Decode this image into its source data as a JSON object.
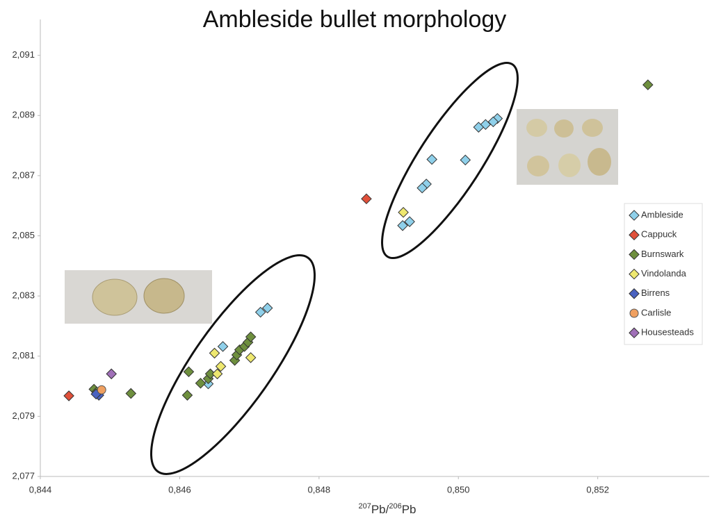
{
  "chart_data": {
    "type": "scatter",
    "title": "Ambleside bullet morphology",
    "xlabel_parts": [
      "207",
      "Pb/",
      "206",
      "Pb"
    ],
    "xlim": [
      0.844,
      0.8536
    ],
    "ylim": [
      2.077,
      2.0915
    ],
    "xticks": [
      {
        "value": 0.844,
        "label": "0,844"
      },
      {
        "value": 0.846,
        "label": "0,846"
      },
      {
        "value": 0.848,
        "label": "0,848"
      },
      {
        "value": 0.85,
        "label": "0,850"
      },
      {
        "value": 0.852,
        "label": "0,852"
      }
    ],
    "yticks": [
      {
        "value": 2.077,
        "label": "2,077"
      },
      {
        "value": 2.079,
        "label": "2,079"
      },
      {
        "value": 2.081,
        "label": "2,081"
      },
      {
        "value": 2.083,
        "label": "2,083"
      },
      {
        "value": 2.085,
        "label": "2,085"
      },
      {
        "value": 2.087,
        "label": "2,087"
      },
      {
        "value": 2.089,
        "label": "2,089"
      },
      {
        "value": 2.091,
        "label": "2,091"
      }
    ],
    "grid": false,
    "legend": "right",
    "series": [
      {
        "name": "Ambleside",
        "color": "#8fd0ea",
        "marker": "diamond",
        "x": [
          0.85056,
          0.8505,
          0.85039,
          0.85029,
          0.8501,
          0.84962,
          0.84954,
          0.84948,
          0.8493,
          0.8492,
          0.84726,
          0.84716,
          0.84662,
          0.84641
        ],
        "values": [
          2.0889,
          2.08879,
          2.0887,
          2.08861,
          2.08752,
          2.08754,
          2.08672,
          2.08659,
          2.08547,
          2.08534,
          2.0826,
          2.08246,
          2.08132,
          2.08008
        ]
      },
      {
        "name": "Cappuck",
        "color": "#e0503a",
        "marker": "diamond",
        "x": [
          0.84868,
          0.84441
        ],
        "values": [
          2.08623,
          2.07968
        ]
      },
      {
        "name": "Burnswark",
        "color": "#6e8f3e",
        "marker": "diamond",
        "x": [
          0.85272,
          0.84611,
          0.84613,
          0.8463,
          0.84641,
          0.84644,
          0.84679,
          0.84682,
          0.84686,
          0.84693,
          0.84698,
          0.84702,
          0.8453,
          0.84477,
          0.84481
        ],
        "values": [
          2.09002,
          2.0797,
          2.08048,
          2.0801,
          2.08025,
          2.08041,
          2.08086,
          2.08104,
          2.08121,
          2.08132,
          2.08146,
          2.08164,
          2.07976,
          2.0799,
          2.07981
        ]
      },
      {
        "name": "Vindolanda",
        "color": "#eee870",
        "marker": "diamond",
        "x": [
          0.84921,
          0.8465,
          0.84659,
          0.84654,
          0.84702
        ],
        "values": [
          2.08578,
          2.0811,
          2.08066,
          2.08041,
          2.08095
        ]
      },
      {
        "name": "Birrens",
        "color": "#4a62c0",
        "marker": "diamond",
        "x": [
          0.84484,
          0.8448
        ],
        "values": [
          2.0797,
          2.07974
        ]
      },
      {
        "name": "Carlisle",
        "color": "#f0a060",
        "marker": "circle",
        "x": [
          0.84488
        ],
        "values": [
          2.07988
        ]
      },
      {
        "name": "Housesteads",
        "color": "#a070b8",
        "marker": "diamond",
        "x": [
          0.84502
        ],
        "values": [
          2.08041
        ]
      }
    ]
  }
}
